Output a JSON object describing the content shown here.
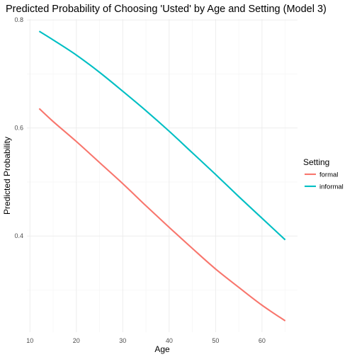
{
  "chart_data": {
    "type": "line",
    "title": "Predicted Probability of Choosing 'Usted' by Age and Setting (Model 3)",
    "xlabel": "Age",
    "ylabel": "Predicted Probability",
    "xlim": [
      9.35,
      67.65
    ],
    "ylim": [
      0.222,
      0.8015
    ],
    "x_ticks": [
      10,
      20,
      30,
      40,
      50,
      60
    ],
    "x_tick_labels": [
      "10",
      "20",
      "30",
      "40",
      "50",
      "60"
    ],
    "y_ticks": [
      0.4,
      0.6,
      0.8
    ],
    "y_tick_labels": [
      "0.4",
      "0.6",
      "0.8"
    ],
    "grid": true,
    "legend": {
      "title": "Setting",
      "position": "right"
    },
    "series": [
      {
        "name": "formal",
        "color": "#F8766D",
        "x": [
          12,
          15,
          20,
          25,
          30,
          35,
          40,
          45,
          50,
          55,
          60,
          65
        ],
        "y": [
          0.636,
          0.612,
          0.575,
          0.536,
          0.497,
          0.456,
          0.416,
          0.377,
          0.339,
          0.305,
          0.272,
          0.243
        ]
      },
      {
        "name": "informal",
        "color": "#00BFC4",
        "x": [
          12,
          15,
          20,
          25,
          30,
          35,
          40,
          45,
          50,
          55,
          60,
          65
        ],
        "y": [
          0.779,
          0.763,
          0.735,
          0.703,
          0.668,
          0.632,
          0.594,
          0.554,
          0.514,
          0.473,
          0.433,
          0.393
        ]
      }
    ]
  }
}
